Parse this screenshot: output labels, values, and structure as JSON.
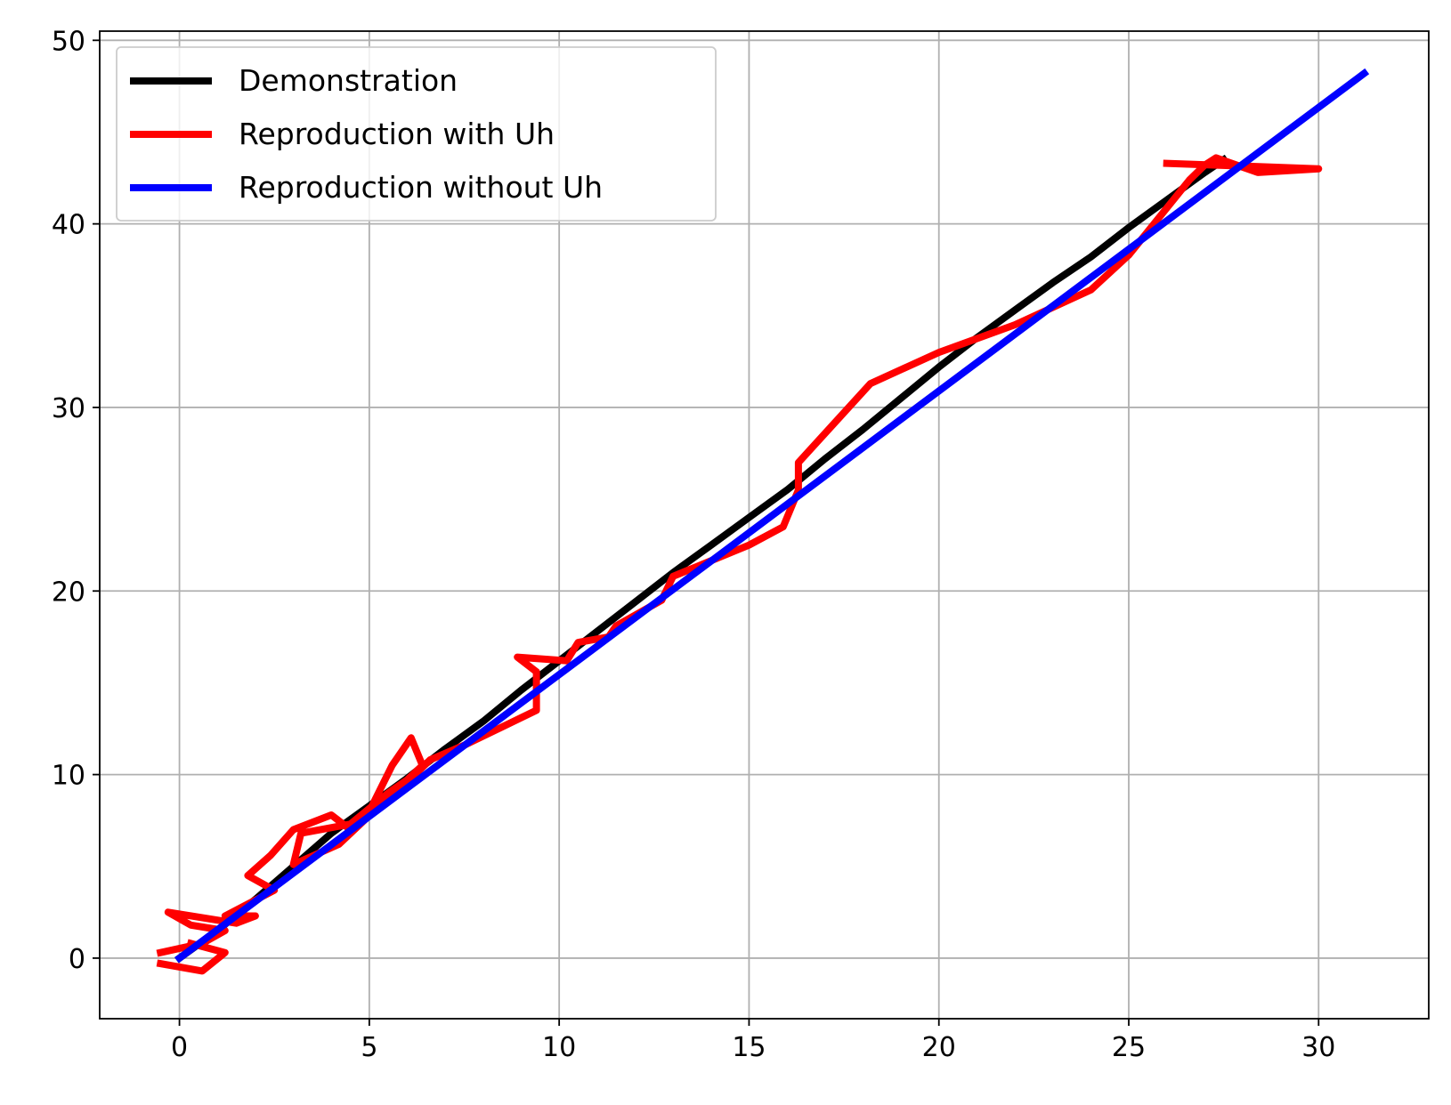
{
  "chart_data": {
    "type": "line",
    "title": "",
    "xlabel": "",
    "ylabel": "",
    "xlim": [
      -2.1,
      32.9
    ],
    "ylim": [
      -3.3,
      50.5
    ],
    "xticks": [
      0,
      5,
      10,
      15,
      20,
      25,
      30
    ],
    "yticks": [
      0,
      10,
      20,
      30,
      40,
      50
    ],
    "grid": true,
    "legend_position": "top-left",
    "series": [
      {
        "name": "Demonstration",
        "color": "#000000",
        "x": [
          0,
          1,
          2,
          3,
          4,
          5,
          6,
          7,
          8,
          9,
          10,
          11,
          12,
          13,
          14,
          15,
          16,
          17,
          18,
          19,
          20,
          21,
          22,
          23,
          24,
          25,
          26,
          27,
          27.5
        ],
        "y": [
          0,
          1.5,
          3.2,
          5.0,
          6.8,
          8.3,
          9.8,
          11.4,
          12.9,
          14.6,
          16.2,
          17.8,
          19.4,
          21.0,
          22.5,
          24.0,
          25.5,
          27.2,
          28.8,
          30.5,
          32.2,
          33.8,
          35.3,
          36.8,
          38.2,
          39.8,
          41.3,
          42.8,
          43.5
        ]
      },
      {
        "name": "Reproduction with Uh",
        "color": "#ff0000",
        "x": [
          -0.5,
          0.6,
          1.2,
          0.3,
          -0.3,
          1.5,
          2.0,
          1.2,
          2.5,
          1.8,
          2.4,
          3.0,
          4.0,
          4.5,
          5.0,
          5.6,
          6.1,
          6.4,
          4.2,
          3.0,
          3.2,
          4.5,
          5.5,
          6.2,
          6.6,
          7.5,
          8.5,
          9.4,
          9.4,
          8.9,
          10.2,
          10.5,
          11.3,
          11.5,
          12.7,
          13.0,
          15.0,
          15.9,
          16.3,
          16.3,
          18.2,
          20.0,
          22.0,
          24.0,
          25.0,
          26.6,
          27.0,
          27.3,
          28.4,
          30.0,
          26.0
        ],
        "y": [
          0.3,
          0.8,
          1.5,
          1.8,
          2.5,
          1.9,
          2.3,
          2.3,
          3.7,
          4.5,
          5.6,
          7.0,
          7.8,
          7.0,
          8.0,
          10.5,
          12.0,
          10.5,
          6.2,
          5.1,
          6.8,
          7.3,
          9.0,
          10.0,
          10.8,
          11.6,
          12.6,
          13.5,
          15.6,
          16.4,
          16.2,
          17.2,
          17.5,
          18.1,
          19.5,
          20.8,
          22.5,
          23.5,
          25.5,
          27.0,
          31.3,
          33.0,
          34.5,
          36.4,
          38.3,
          42.4,
          43.2,
          43.6,
          42.8,
          43.0,
          43.3
        ]
      },
      {
        "name": "Reproduction without Uh",
        "color": "#0000ff",
        "x": [
          0,
          31.2
        ],
        "y": [
          0,
          48.2
        ]
      }
    ],
    "extra_segments": [
      {
        "series": "Reproduction with Uh",
        "x": [
          -0.5,
          0.6,
          1.2,
          0.3
        ],
        "y": [
          -0.3,
          -0.7,
          0.3,
          0.8
        ]
      }
    ]
  }
}
